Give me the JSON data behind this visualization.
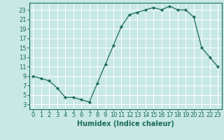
{
  "x": [
    0,
    1,
    2,
    3,
    4,
    5,
    6,
    7,
    8,
    9,
    10,
    11,
    12,
    13,
    14,
    15,
    16,
    17,
    18,
    19,
    20,
    21,
    22,
    23
  ],
  "y": [
    9,
    8.5,
    8,
    6.5,
    4.5,
    4.5,
    4,
    3.5,
    7.5,
    11.5,
    15.5,
    19.5,
    22,
    22.5,
    23,
    23.5,
    23,
    23.8,
    23,
    23,
    21.5,
    15,
    13,
    11
  ],
  "line_color": "#1a6b5a",
  "marker": "D",
  "marker_size": 2.0,
  "bg_color": "#c8e8e5",
  "grid_color": "#ffffff",
  "xlabel": "Humidex (Indice chaleur)",
  "xlim": [
    -0.5,
    23.5
  ],
  "ylim": [
    2,
    24.5
  ],
  "yticks": [
    3,
    5,
    7,
    9,
    11,
    13,
    15,
    17,
    19,
    21,
    23
  ],
  "xticks": [
    0,
    1,
    2,
    3,
    4,
    5,
    6,
    7,
    8,
    9,
    10,
    11,
    12,
    13,
    14,
    15,
    16,
    17,
    18,
    19,
    20,
    21,
    22,
    23
  ],
  "xlabel_fontsize": 7.0,
  "tick_fontsize": 6.0,
  "linewidth": 0.9
}
